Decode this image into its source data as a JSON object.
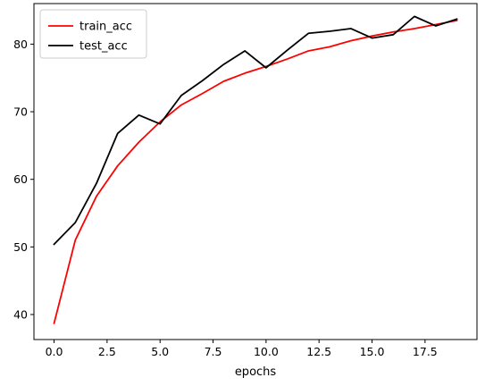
{
  "chart_data": {
    "type": "line",
    "title": "",
    "xlabel": "epochs",
    "ylabel": "",
    "xlim": [
      -0.95,
      19.95
    ],
    "ylim": [
      36.3,
      86.0
    ],
    "xticks": [
      0.0,
      2.5,
      5.0,
      7.5,
      10.0,
      12.5,
      15.0,
      17.5
    ],
    "xtick_labels": [
      "0.0",
      "2.5",
      "5.0",
      "7.5",
      "10.0",
      "12.5",
      "15.0",
      "17.5"
    ],
    "yticks": [
      40,
      50,
      60,
      70,
      80
    ],
    "ytick_labels": [
      "40",
      "50",
      "60",
      "70",
      "80"
    ],
    "grid": false,
    "legend_position": "upper-left",
    "x": [
      0,
      1,
      2,
      3,
      4,
      5,
      6,
      7,
      8,
      9,
      10,
      11,
      12,
      13,
      14,
      15,
      16,
      17,
      18,
      19
    ],
    "series": [
      {
        "name": "train_acc",
        "color": "#ff0000",
        "values": [
          38.7,
          51.0,
          57.5,
          62.0,
          65.5,
          68.5,
          71.0,
          72.7,
          74.5,
          75.7,
          76.7,
          77.8,
          79.0,
          79.6,
          80.5,
          81.2,
          81.8,
          82.3,
          82.9,
          83.5
        ]
      },
      {
        "name": "test_acc",
        "color": "#000000",
        "values": [
          50.4,
          53.6,
          59.4,
          66.8,
          69.5,
          68.2,
          72.4,
          74.6,
          77.0,
          79.0,
          76.5,
          79.1,
          81.6,
          81.9,
          82.3,
          80.9,
          81.4,
          84.1,
          82.7,
          83.7
        ]
      }
    ]
  }
}
